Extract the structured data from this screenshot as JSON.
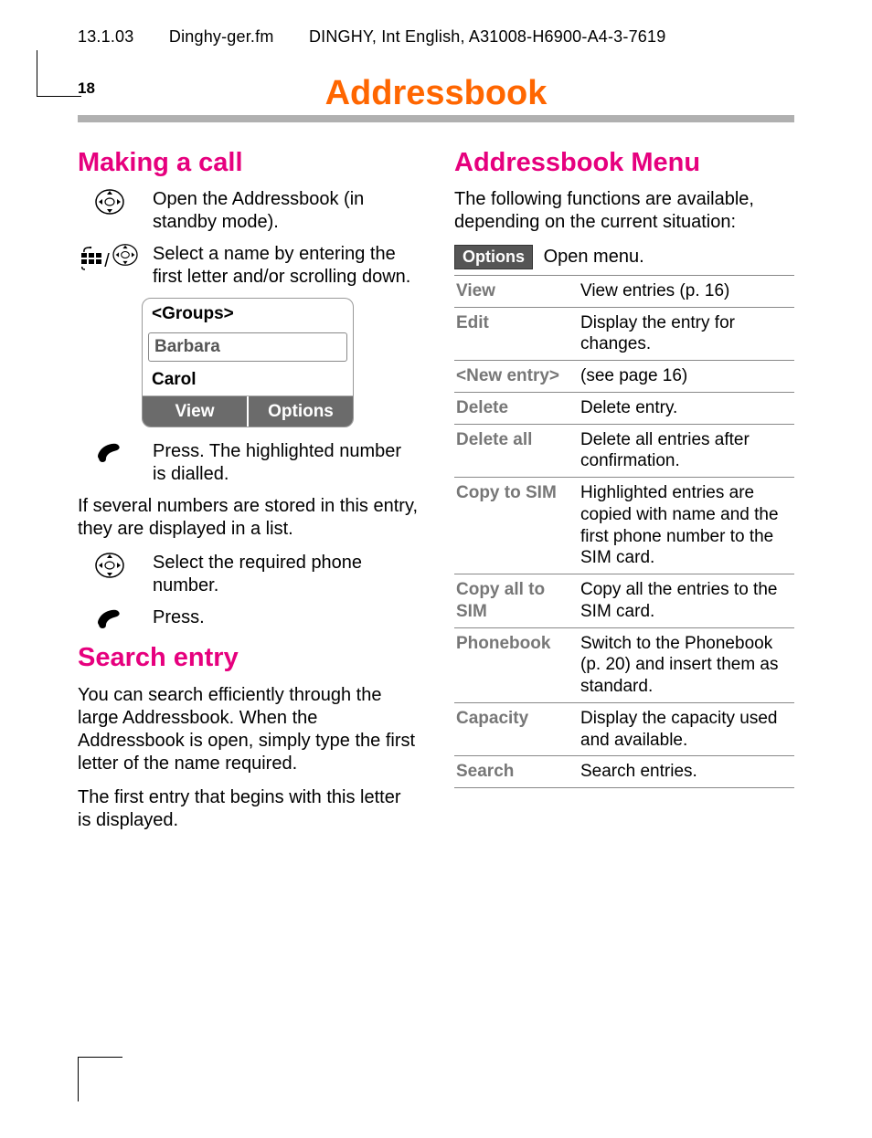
{
  "header": {
    "date": "13.1.03",
    "filename": "Dinghy-ger.fm",
    "doc_id": "DINGHY, Int English, A31008-H6900-A4-3-7619"
  },
  "page_number": "18",
  "page_title": "Addressbook",
  "colors": {
    "title": "#ff6600",
    "section": "#e6007e",
    "rule": "#b0b0b0",
    "softkey_bg": "#6b6b6b",
    "table_key": "#777777",
    "border": "#888888"
  },
  "left": {
    "section1": "Making a call",
    "instr1": "Open the Addressbook (in standby mode).",
    "instr2": "Select a name by entering the first letter and/or scrolling down.",
    "screen": {
      "row1": "<Groups>",
      "row2": "Barbara",
      "row3": "Carol",
      "sk_left": "View",
      "sk_right": "Options"
    },
    "instr3": "Press. The highlighted number is dialled.",
    "para1": "If several numbers are stored in this entry, they are displayed in a list.",
    "instr4": "Select the required phone number.",
    "instr5": "Press.",
    "section2": "Search entry",
    "para2": "You can search efficiently through the large Addressbook. When the Addressbook is open, simply type the first letter of the name required.",
    "para3": "The first entry that begins with this letter is displayed."
  },
  "right": {
    "section": "Addressbook Menu",
    "intro": "The following functions are available, depending on the current situation:",
    "options_label": "Options",
    "options_text": "Open menu.",
    "rows": [
      {
        "k": "View",
        "v": "View entries (p. 16)"
      },
      {
        "k": "Edit",
        "v": "Display the entry for changes."
      },
      {
        "k": "<New entry>",
        "v": "(see page 16)"
      },
      {
        "k": "Delete",
        "v": "Delete entry."
      },
      {
        "k": "Delete all",
        "v": "Delete all entries after confirmation."
      },
      {
        "k": "Copy to SIM",
        "v": "Highlighted entries are copied with name and the first phone number to the SIM card."
      },
      {
        "k": "Copy all to\nSIM",
        "v": "Copy all the entries to the SIM card."
      },
      {
        "k": "Phonebook",
        "v": "Switch to the Phonebook (p. 20) and insert them as standard."
      },
      {
        "k": "Capacity",
        "v": "Display the capacity used and available."
      },
      {
        "k": "Search",
        "v": "Search entries."
      }
    ]
  }
}
